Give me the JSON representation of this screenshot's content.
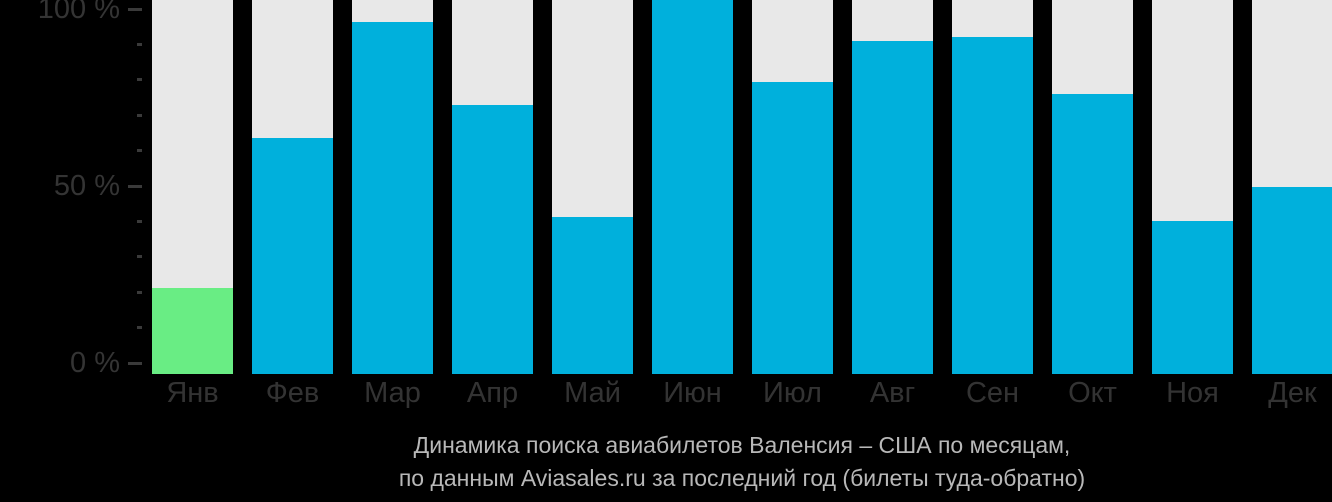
{
  "chart_data": {
    "type": "bar",
    "title": "Динамика поиска авиабилетов Валенсия – США по месяцам,",
    "subtitle": "по данным Aviasales.ru за последний год (билеты туда-обратно)",
    "categories": [
      "Янв",
      "Фев",
      "Мар",
      "Апр",
      "Май",
      "Июн",
      "Июл",
      "Авг",
      "Сен",
      "Окт",
      "Ноя",
      "Дек"
    ],
    "values": [
      23,
      63,
      94,
      72,
      42,
      100,
      78,
      89,
      90,
      75,
      41,
      50
    ],
    "unit": "%",
    "highlight_index": 0,
    "xlabel": "",
    "ylabel": "",
    "ylim": [
      0,
      100
    ],
    "yticks": [
      {
        "value": 100,
        "label": "100 %"
      },
      {
        "value": 50,
        "label": "50 %"
      },
      {
        "value": 0,
        "label": "0 %"
      }
    ],
    "minor_tick_step": 10,
    "grid": false,
    "legend": "none",
    "colors": {
      "bar": "#00b0dc",
      "highlight_bar": "#69ed84",
      "track": "#e8e8e8",
      "background": "#000000",
      "axis_text": "#343434",
      "caption_text": "#b8b8b8",
      "tick": "#3a3a3a"
    }
  }
}
